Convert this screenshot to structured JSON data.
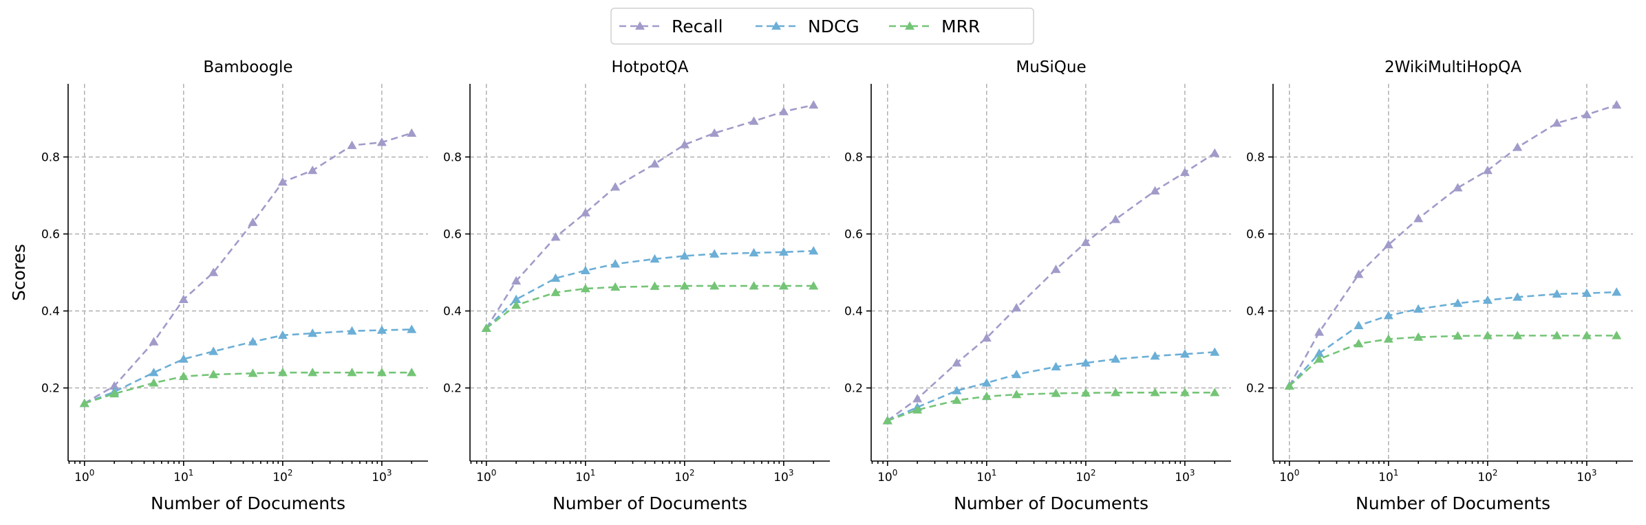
{
  "chart_data": {
    "type": "line",
    "legend": {
      "position": "top-center",
      "entries": [
        "Recall",
        "NDCG",
        "MRR"
      ]
    },
    "colors": {
      "Recall": "#a09bc9",
      "NDCG": "#6baed6",
      "MRR": "#74c476"
    },
    "ylabel": "Scores",
    "xscale": "log",
    "x": [
      1,
      2,
      5,
      10,
      20,
      50,
      100,
      200,
      500,
      1000,
      2000
    ],
    "xlim": [
      0.684,
      2924
    ],
    "ylim": [
      0.01,
      0.99
    ],
    "yticks": [
      0.2,
      0.4,
      0.6,
      0.8
    ],
    "ytick_labels": [
      "0.2",
      "0.4",
      "0.6",
      "0.8"
    ],
    "xticks": [
      1,
      10,
      100,
      1000
    ],
    "xtick_labels": [
      {
        "base": "10",
        "exp": "0"
      },
      {
        "base": "10",
        "exp": "1"
      },
      {
        "base": "10",
        "exp": "2"
      },
      {
        "base": "10",
        "exp": "3"
      }
    ],
    "grid": true,
    "panels": [
      {
        "title": "Bamboogle",
        "xlabel": "Number of Documents",
        "series": [
          {
            "name": "Recall",
            "values": [
              0.16,
              0.205,
              0.32,
              0.43,
              0.5,
              0.63,
              0.735,
              0.765,
              0.83,
              0.838,
              0.862
            ]
          },
          {
            "name": "NDCG",
            "values": [
              0.16,
              0.19,
              0.24,
              0.275,
              0.295,
              0.32,
              0.337,
              0.342,
              0.348,
              0.35,
              0.352
            ]
          },
          {
            "name": "MRR",
            "values": [
              0.16,
              0.185,
              0.213,
              0.23,
              0.235,
              0.238,
              0.24,
              0.24,
              0.24,
              0.24,
              0.24
            ]
          }
        ]
      },
      {
        "title": "HotpotQA",
        "xlabel": "Number of Documents",
        "series": [
          {
            "name": "Recall",
            "values": [
              0.355,
              0.478,
              0.592,
              0.655,
              0.722,
              0.782,
              0.832,
              0.862,
              0.893,
              0.918,
              0.935
            ]
          },
          {
            "name": "NDCG",
            "values": [
              0.355,
              0.43,
              0.485,
              0.505,
              0.522,
              0.535,
              0.543,
              0.548,
              0.551,
              0.553,
              0.556
            ]
          },
          {
            "name": "MRR",
            "values": [
              0.355,
              0.415,
              0.448,
              0.458,
              0.462,
              0.464,
              0.465,
              0.465,
              0.465,
              0.465,
              0.465
            ]
          }
        ]
      },
      {
        "title": "MuSiQue",
        "xlabel": "Number of Documents",
        "series": [
          {
            "name": "Recall",
            "values": [
              0.115,
              0.172,
              0.265,
              0.33,
              0.408,
              0.508,
              0.578,
              0.638,
              0.712,
              0.76,
              0.81
            ]
          },
          {
            "name": "NDCG",
            "values": [
              0.115,
              0.15,
              0.193,
              0.213,
              0.235,
              0.255,
              0.265,
              0.275,
              0.283,
              0.288,
              0.293
            ]
          },
          {
            "name": "MRR",
            "values": [
              0.115,
              0.143,
              0.168,
              0.178,
              0.183,
              0.186,
              0.187,
              0.188,
              0.188,
              0.188,
              0.188
            ]
          }
        ]
      },
      {
        "title": "2WikiMultiHopQA",
        "xlabel": "Number of Documents",
        "series": [
          {
            "name": "Recall",
            "values": [
              0.205,
              0.345,
              0.495,
              0.572,
              0.64,
              0.72,
              0.765,
              0.825,
              0.888,
              0.91,
              0.935
            ]
          },
          {
            "name": "NDCG",
            "values": [
              0.205,
              0.29,
              0.362,
              0.388,
              0.405,
              0.42,
              0.428,
              0.436,
              0.444,
              0.446,
              0.449
            ]
          },
          {
            "name": "MRR",
            "values": [
              0.205,
              0.275,
              0.315,
              0.327,
              0.332,
              0.335,
              0.336,
              0.336,
              0.336,
              0.336,
              0.336
            ]
          }
        ]
      }
    ]
  }
}
